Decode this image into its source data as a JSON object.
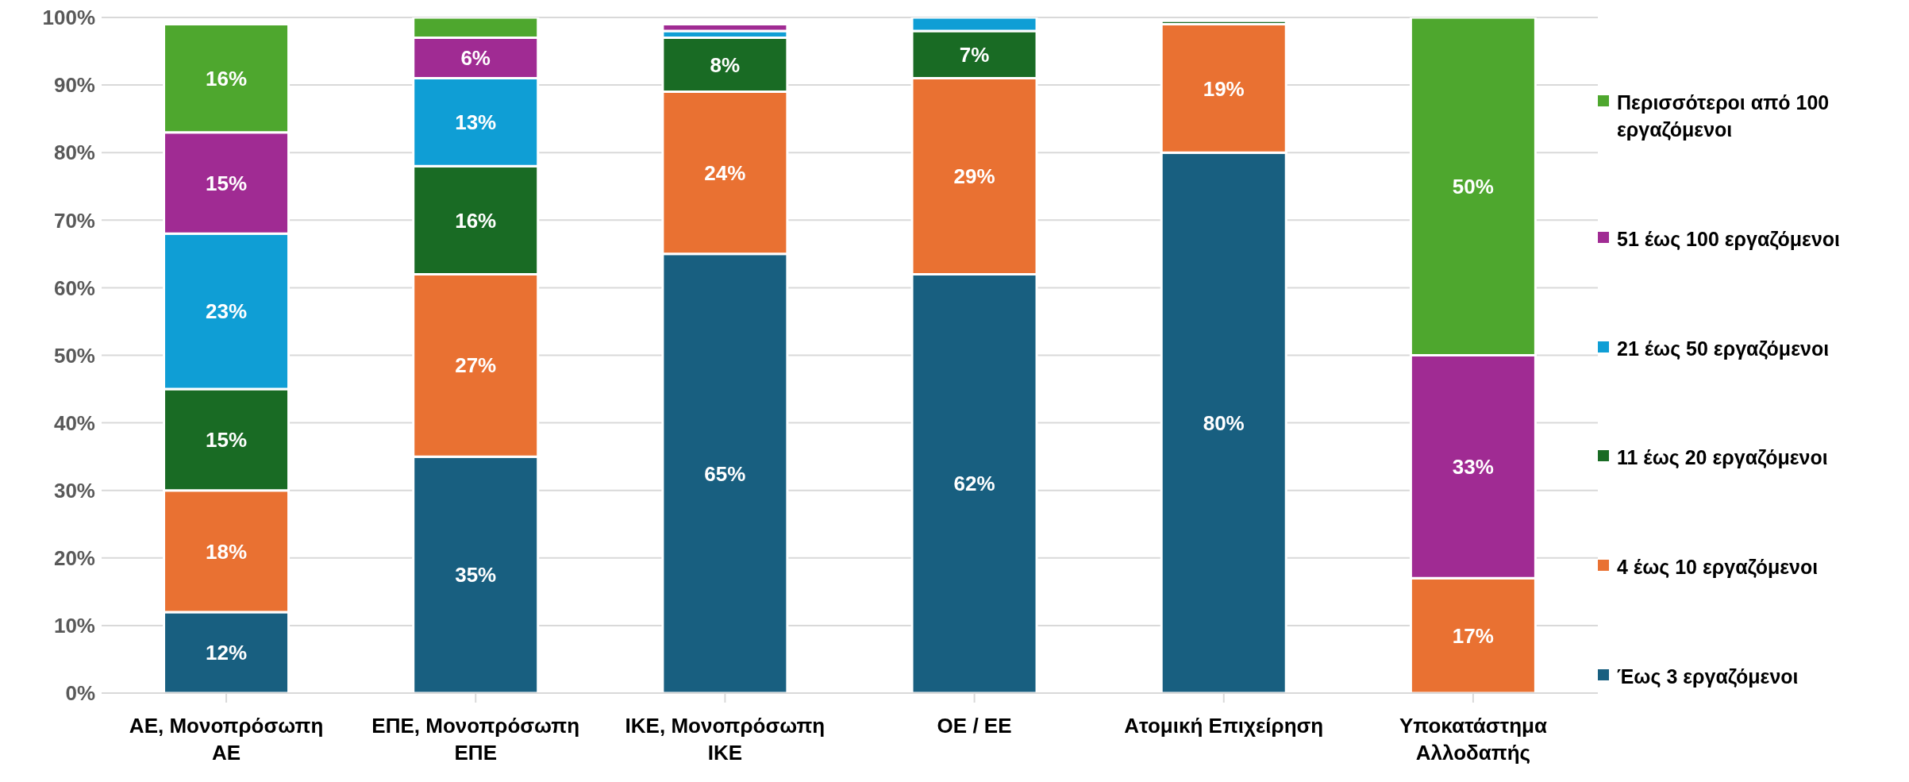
{
  "chart_data": {
    "type": "bar",
    "stacked": true,
    "categories": [
      "ΑΕ, Μονοπρόσωπη ΑΕ",
      "ΕΠΕ, Μονοπρόσωπη ΕΠΕ",
      "ΙΚΕ, Μονοπρόσωπη ΙΚΕ",
      "ΟΕ / ΕΕ",
      "Ατομική Επιχείρηση",
      "Υποκατάστημα Αλλοδαπής"
    ],
    "series": [
      {
        "name": "Έως 3 εργαζόμενοι",
        "color": "#185f80",
        "values": [
          12,
          35,
          65,
          62,
          80,
          0
        ],
        "value_labels": [
          "12%",
          "35%",
          "65%",
          "62%",
          "80%",
          null
        ]
      },
      {
        "name": "4 έως 10 εργαζόμενοι",
        "color": "#e97132",
        "values": [
          18,
          27,
          24,
          29,
          19,
          17
        ],
        "value_labels": [
          "18%",
          "27%",
          "24%",
          "29%",
          "19%",
          "17%"
        ]
      },
      {
        "name": "11 έως 20 εργαζόμενοι",
        "color": "#196b24",
        "values": [
          15,
          16,
          8,
          7,
          0.5,
          0
        ],
        "value_labels": [
          "15%",
          "16%",
          "8%",
          "7%",
          null,
          null
        ]
      },
      {
        "name": "21 έως 50 εργαζόμενοι",
        "color": "#0f9ed5",
        "values": [
          23,
          13,
          1,
          2,
          0,
          0
        ],
        "value_labels": [
          "23%",
          "13%",
          null,
          null,
          null,
          null
        ]
      },
      {
        "name": "51 έως 100 εργαζόμενοι",
        "color": "#a02b93",
        "values": [
          15,
          6,
          1,
          0,
          0,
          33
        ],
        "value_labels": [
          "15%",
          "6%",
          null,
          null,
          null,
          "33%"
        ]
      },
      {
        "name": "Περισσότεροι από 100 εργαζόμενοι",
        "color": "#4ea72e",
        "values": [
          16,
          3,
          0,
          0,
          0,
          50
        ],
        "value_labels": [
          "16%",
          null,
          null,
          null,
          null,
          "50%"
        ]
      }
    ],
    "ylim": [
      0,
      100
    ],
    "yticks": [
      {
        "value": 0,
        "label": "0%"
      },
      {
        "value": 10,
        "label": "10%"
      },
      {
        "value": 20,
        "label": "20%"
      },
      {
        "value": 30,
        "label": "30%"
      },
      {
        "value": 40,
        "label": "40%"
      },
      {
        "value": 50,
        "label": "50%"
      },
      {
        "value": 60,
        "label": "60%"
      },
      {
        "value": 70,
        "label": "70%"
      },
      {
        "value": 80,
        "label": "80%"
      },
      {
        "value": 90,
        "label": "90%"
      },
      {
        "value": 100,
        "label": "100%"
      }
    ],
    "grid": "y",
    "legend": "right"
  }
}
